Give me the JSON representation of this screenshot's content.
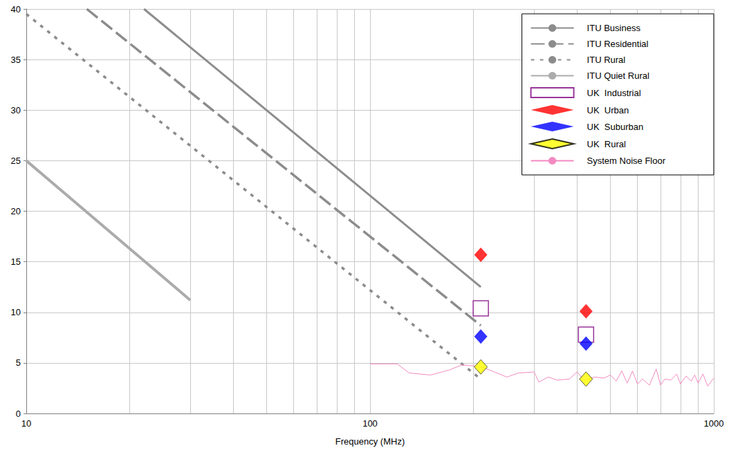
{
  "chart_data": {
    "type": "line",
    "xlabel": "Frequency (MHz)",
    "log": "x",
    "grid": true,
    "legend": "upper right",
    "xlim": [
      10,
      1000
    ],
    "xticks": [
      10,
      100,
      1000
    ],
    "ylim": [
      0,
      40
    ],
    "yticks": [
      0,
      5,
      10,
      15,
      20,
      25,
      30,
      35,
      40
    ],
    "series": [
      {
        "name": "ITU Business",
        "type": "line",
        "color": "#8c8c8c",
        "line_style": "solid",
        "x": [
          22,
          210
        ],
        "values": [
          40,
          12.5
        ]
      },
      {
        "name": "ITU Residential",
        "type": "line",
        "color": "#8c8c8c",
        "line_style": "long_dash",
        "x": [
          15,
          210
        ],
        "values": [
          40,
          8.7
        ]
      },
      {
        "name": "ITU Rural",
        "type": "line",
        "color": "#8c8c8c",
        "line_style": "dash",
        "x": [
          10,
          210
        ],
        "values": [
          39.5,
          3.4
        ]
      },
      {
        "name": "ITU Quiet Rural",
        "type": "line",
        "color": "#ababab",
        "line_style": "double",
        "x": [
          10,
          30
        ],
        "values": [
          25,
          11.2
        ]
      },
      {
        "name": "UK  Industrial",
        "type": "scatter",
        "color": "#800080",
        "marker": "open_square",
        "x": [
          210,
          425
        ],
        "values": [
          10.4,
          7.8
        ]
      },
      {
        "name": "UK  Urban",
        "type": "scatter",
        "color": "#ff0000",
        "marker": "diamond",
        "x": [
          210,
          425
        ],
        "values": [
          15.7,
          10.1
        ]
      },
      {
        "name": "UK  Suburban",
        "type": "scatter",
        "color": "#0000ff",
        "marker": "diamond",
        "x": [
          210,
          425
        ],
        "values": [
          7.6,
          6.9
        ]
      },
      {
        "name": "UK  Rural",
        "type": "scatter",
        "color": "#ffff00",
        "marker": "outlined_diamond",
        "x": [
          210,
          425
        ],
        "values": [
          4.6,
          3.4
        ]
      },
      {
        "name": "System Noise Floor",
        "type": "line",
        "color": "#f28ac0",
        "line_style": "thin",
        "x": [
          100,
          110,
          120,
          130,
          150,
          170,
          185,
          200,
          215,
          230,
          250,
          270,
          300,
          310,
          330,
          350,
          380,
          400,
          420,
          450,
          480,
          500,
          520,
          540,
          560,
          580,
          600,
          620,
          650,
          680,
          700,
          720,
          750,
          780,
          800,
          830,
          860,
          880,
          900,
          930,
          960,
          1000
        ],
        "values": [
          4.9,
          4.9,
          4.9,
          4.0,
          3.8,
          4.3,
          4.8,
          4.7,
          4.5,
          4.1,
          3.6,
          4.0,
          4.1,
          3.1,
          3.6,
          3.3,
          3.4,
          4.1,
          3.3,
          3.6,
          3.5,
          3.8,
          3.2,
          4.2,
          3.0,
          4.2,
          2.9,
          3.4,
          2.8,
          4.4,
          2.8,
          3.4,
          3.3,
          3.9,
          2.9,
          3.7,
          3.2,
          3.8,
          3.0,
          3.9,
          2.7,
          3.5
        ]
      }
    ]
  }
}
